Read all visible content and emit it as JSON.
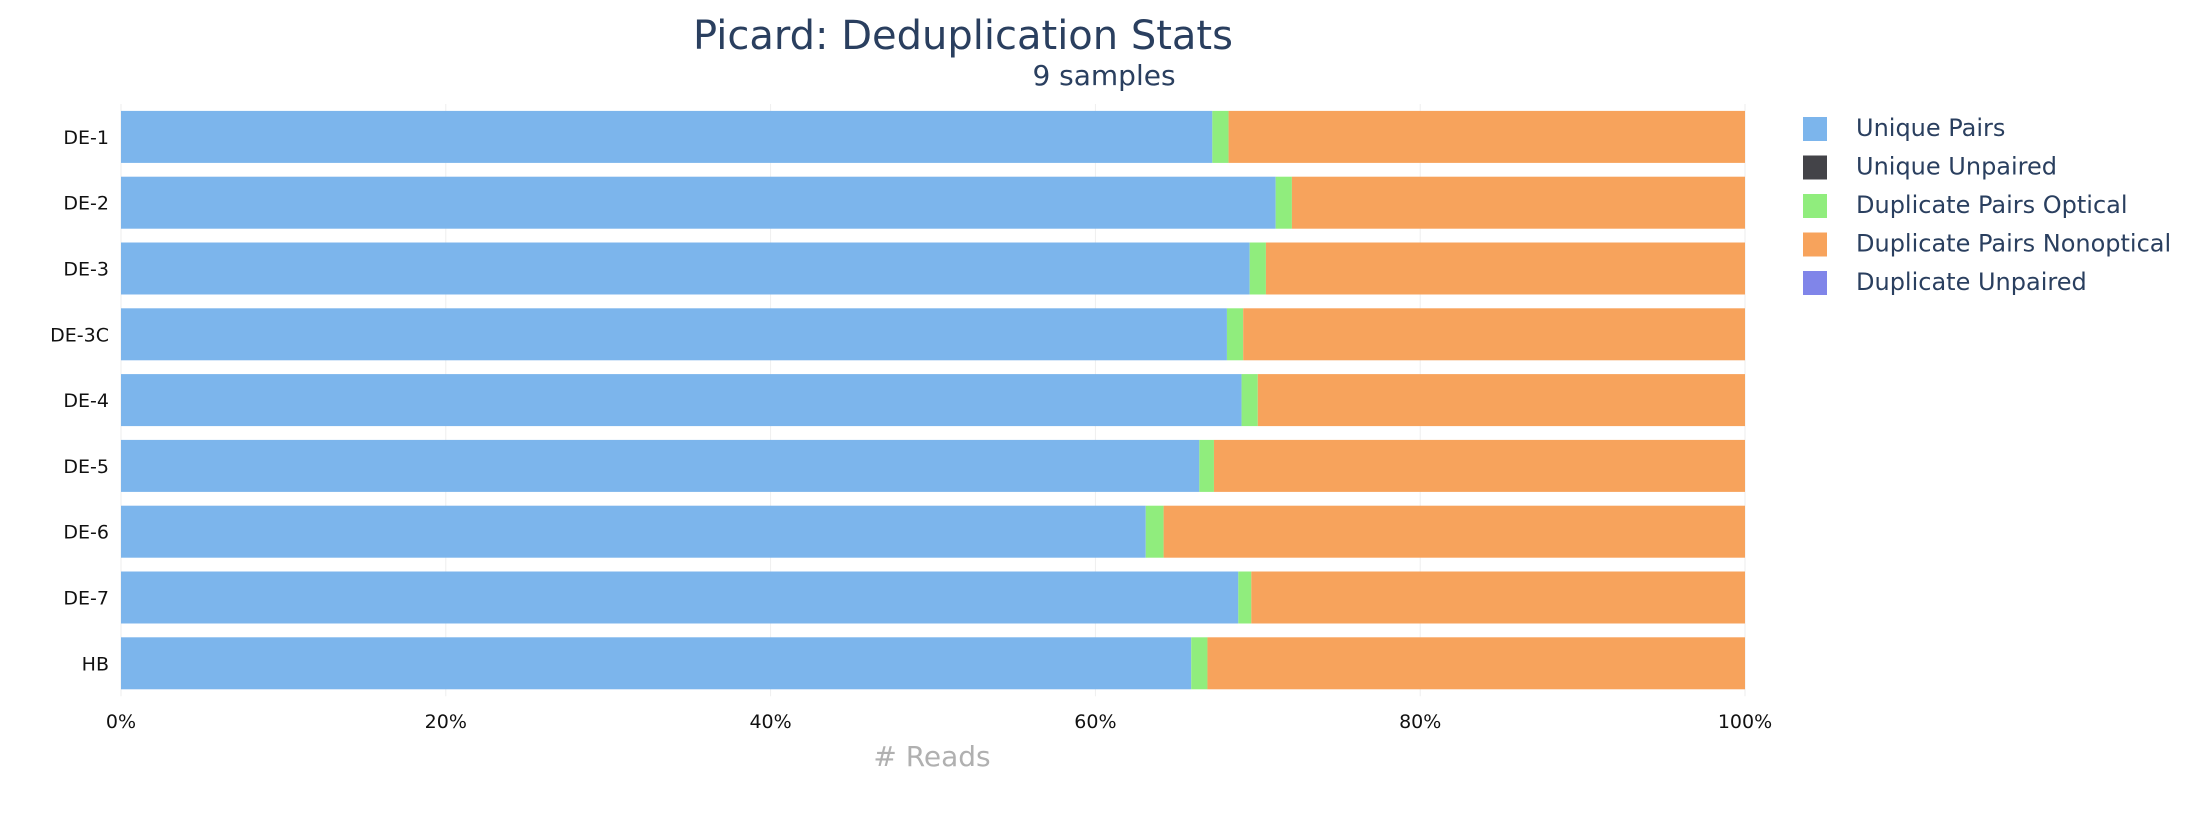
{
  "chart_data": {
    "type": "bar",
    "orientation": "horizontal",
    "stacking": "percent",
    "title": "Picard: Deduplication Stats",
    "subtitle": "9 samples",
    "xlabel": "# Reads",
    "ylabel": "",
    "xlim": [
      0,
      100
    ],
    "x_ticks": [
      "0%",
      "20%",
      "40%",
      "60%",
      "80%",
      "100%"
    ],
    "grid": true,
    "legend_position": "right",
    "categories": [
      "DE-1",
      "DE-2",
      "DE-3",
      "DE-3C",
      "DE-4",
      "DE-5",
      "DE-6",
      "DE-7",
      "HB"
    ],
    "series": [
      {
        "name": "Unique Pairs",
        "color": "#7cb5ec",
        "values": [
          67.2,
          71.1,
          69.5,
          68.1,
          69.0,
          66.4,
          63.1,
          68.8,
          65.9
        ]
      },
      {
        "name": "Unique Unpaired",
        "color": "#434348",
        "values": [
          0,
          0,
          0,
          0,
          0,
          0,
          0,
          0,
          0
        ]
      },
      {
        "name": "Duplicate Pairs Optical",
        "color": "#90ed7d",
        "values": [
          1.0,
          1.0,
          1.0,
          1.0,
          1.0,
          0.9,
          1.1,
          0.8,
          1.0
        ]
      },
      {
        "name": "Duplicate Pairs Nonoptical",
        "color": "#f7a35c",
        "values": [
          31.8,
          27.9,
          29.5,
          30.9,
          30.0,
          32.7,
          35.8,
          30.4,
          33.1
        ]
      },
      {
        "name": "Duplicate Unpaired",
        "color": "#8085e9",
        "values": [
          0,
          0,
          0,
          0,
          0,
          0,
          0,
          0,
          0
        ]
      }
    ]
  }
}
